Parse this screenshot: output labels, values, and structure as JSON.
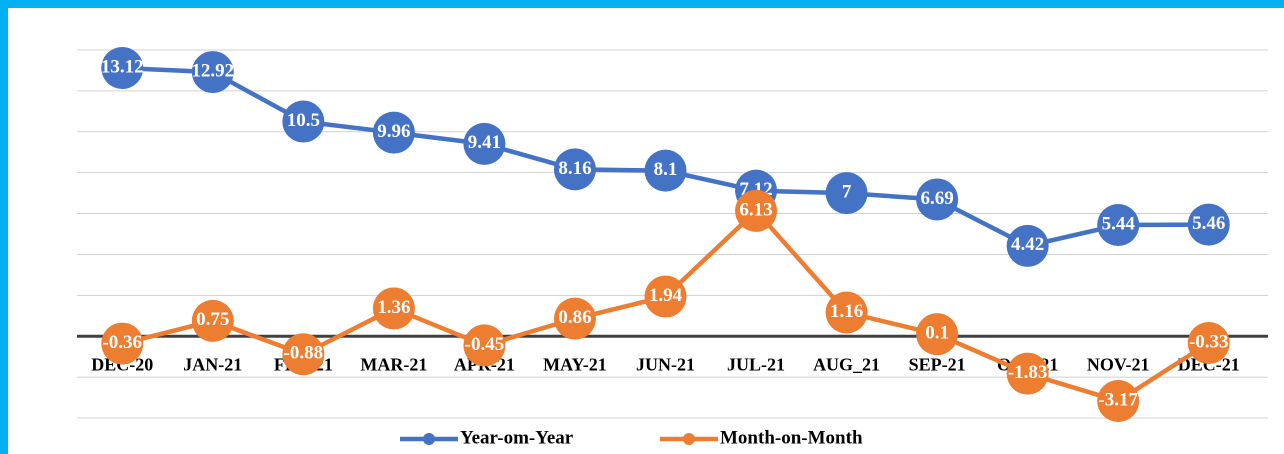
{
  "chart_data": {
    "type": "line",
    "categories": [
      "DEC-20",
      "JAN-21",
      "FEB-21",
      "MAR-21",
      "APR-21",
      "MAY-21",
      "JUN-21",
      "JUL-21",
      "AUG_21",
      "SEP-21",
      "OCT-21",
      "NOV-21",
      "DEC-21"
    ],
    "series": [
      {
        "name": "Year-om-Year",
        "color": "#4472c4",
        "values": [
          13.12,
          12.92,
          10.5,
          9.96,
          9.41,
          8.16,
          8.1,
          7.12,
          7,
          6.69,
          4.42,
          5.44,
          5.46
        ]
      },
      {
        "name": "Month-on-Month",
        "color": "#ed7d31",
        "values": [
          -0.36,
          0.75,
          -0.88,
          1.36,
          -0.45,
          0.86,
          1.94,
          6.13,
          1.16,
          0.1,
          -1.83,
          -3.17,
          -0.33
        ]
      }
    ],
    "ylim": [
      -4,
      14
    ],
    "yticks": [
      -4,
      -2,
      0,
      2,
      4,
      6,
      8,
      10,
      12,
      14
    ],
    "grid": true,
    "legend": "bottom"
  }
}
